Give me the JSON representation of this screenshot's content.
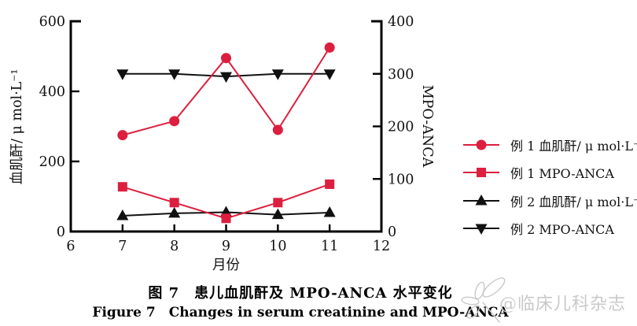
{
  "chart_data": {
    "type": "line",
    "x": [
      7,
      8,
      9,
      10,
      11
    ],
    "x_axis": {
      "label": "月份",
      "range": [
        6,
        12
      ],
      "ticks": [
        6,
        7,
        8,
        9,
        10,
        11,
        12
      ]
    },
    "left_axis": {
      "label": "血肌酐/ μ mol·L⁻¹",
      "range": [
        0,
        600
      ],
      "ticks": [
        0,
        200,
        400,
        600
      ]
    },
    "right_axis": {
      "label": "MPO-ANCA",
      "range": [
        0,
        400
      ],
      "ticks": [
        0,
        100,
        200,
        300,
        400
      ]
    },
    "series": [
      {
        "name": "例 1 血肌酐/ μ mol·L⁻¹",
        "axis": "left",
        "marker": "circle",
        "color": "#dc1f3e",
        "values": [
          275,
          315,
          495,
          290,
          525
        ]
      },
      {
        "name": "例 1 MPO-ANCA",
        "axis": "right",
        "marker": "square",
        "color": "#dc1f3e",
        "values": [
          85,
          55,
          25,
          55,
          90
        ]
      },
      {
        "name": "例 2 血肌酐/ μ mol·L⁻¹",
        "axis": "left",
        "marker": "triangle-up",
        "color": "#111111",
        "values": [
          45,
          52,
          55,
          48,
          54
        ]
      },
      {
        "name": "例 2 MPO-ANCA",
        "axis": "right",
        "marker": "triangle-down",
        "color": "#111111",
        "values": [
          300,
          300,
          295,
          300,
          300
        ]
      }
    ],
    "grid": false,
    "legend_position": "right"
  },
  "caption": {
    "zh": "图 7　患儿血肌酐及 MPO-ANCA 水平变化",
    "en": "Figure 7 Changes in serum creatinine and MPO-ANCA"
  },
  "watermark": {
    "icon": "flower-icon",
    "text": "@临床儿科杂志",
    "color": "#c9c9c9"
  },
  "colors": {
    "axis": "#000000",
    "accent_red": "#dc1f3e",
    "series_black": "#111111"
  }
}
